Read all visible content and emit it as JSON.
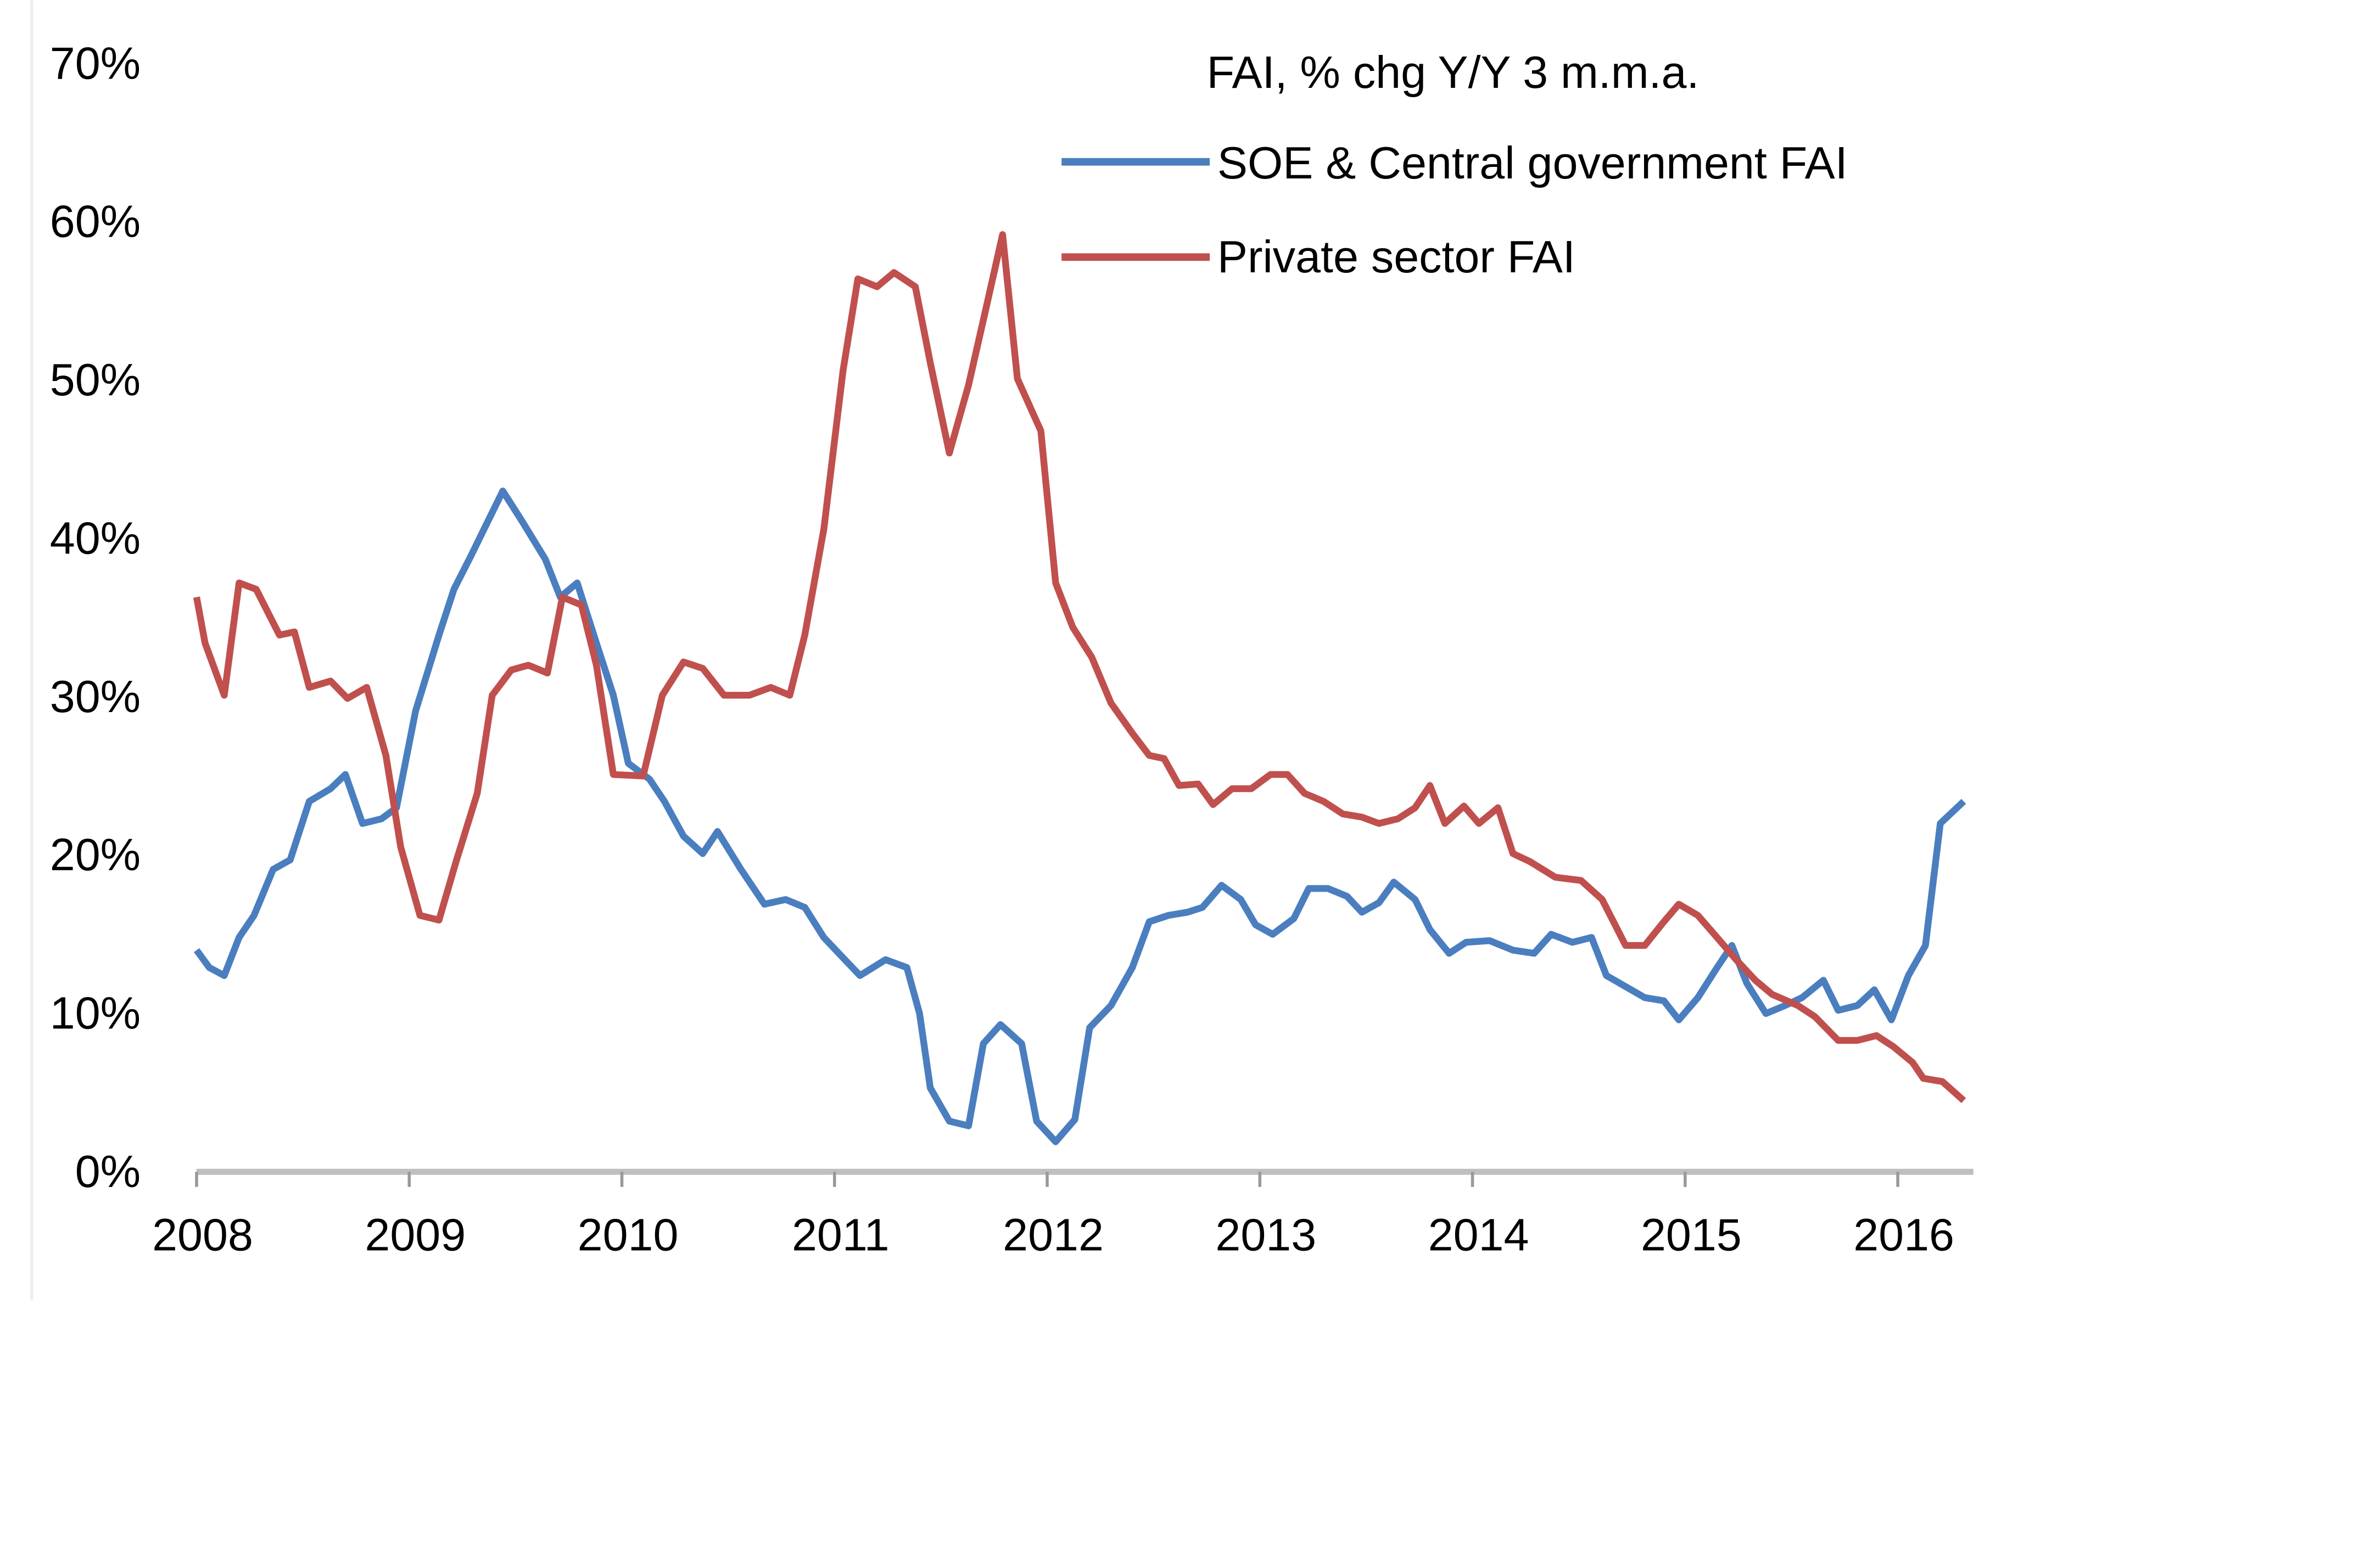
{
  "chart_data": {
    "type": "line",
    "title": "FAI, % chg Y/Y 3 m.m.a.",
    "xlabel": "",
    "ylabel": "",
    "xlim": [
      2008,
      2016.35
    ],
    "ylim": [
      0,
      70
    ],
    "x_ticks": [
      2008,
      2009,
      2010,
      2011,
      2012,
      2013,
      2014,
      2015,
      2016
    ],
    "x_tick_labels": [
      "2008",
      "2009",
      "2010",
      "2011",
      "2012",
      "2013",
      "2014",
      "2015",
      "2016"
    ],
    "y_ticks": [
      0,
      10,
      20,
      30,
      40,
      50,
      60,
      70
    ],
    "y_tick_labels": [
      "0%",
      "10%",
      "20%",
      "30%",
      "40%",
      "50%",
      "60%",
      "70%"
    ],
    "grid": false,
    "legend_position": "top-right",
    "series": [
      {
        "name": "SOE & Central government FAI",
        "color": "#4a7ebf",
        "points": [
          [
            2008.0,
            14
          ],
          [
            2008.06,
            12.9
          ],
          [
            2008.13,
            12.4
          ],
          [
            2008.2,
            14.8
          ],
          [
            2008.27,
            16.2
          ],
          [
            2008.36,
            19.1
          ],
          [
            2008.44,
            19.7
          ],
          [
            2008.53,
            23.4
          ],
          [
            2008.63,
            24.2
          ],
          [
            2008.7,
            25.1
          ],
          [
            2008.78,
            22
          ],
          [
            2008.87,
            22.3
          ],
          [
            2008.94,
            23
          ],
          [
            2009.03,
            29.1
          ],
          [
            2009.14,
            33.9
          ],
          [
            2009.21,
            36.8
          ],
          [
            2009.29,
            38.9
          ],
          [
            2009.37,
            41.1
          ],
          [
            2009.44,
            43
          ],
          [
            2009.53,
            41.1
          ],
          [
            2009.64,
            38.7
          ],
          [
            2009.71,
            36.3
          ],
          [
            2009.79,
            37.2
          ],
          [
            2009.88,
            33.4
          ],
          [
            2009.96,
            30.1
          ],
          [
            2010.03,
            25.8
          ],
          [
            2010.13,
            24.8
          ],
          [
            2010.2,
            23.4
          ],
          [
            2010.29,
            21.2
          ],
          [
            2010.38,
            20.1
          ],
          [
            2010.45,
            21.5
          ],
          [
            2010.56,
            19.1
          ],
          [
            2010.67,
            16.9
          ],
          [
            2010.77,
            17.2
          ],
          [
            2010.86,
            16.7
          ],
          [
            2010.95,
            14.8
          ],
          [
            2011.02,
            13.8
          ],
          [
            2011.12,
            12.4
          ],
          [
            2011.24,
            13.4
          ],
          [
            2011.34,
            12.9
          ],
          [
            2011.4,
            10
          ],
          [
            2011.45,
            5.3
          ],
          [
            2011.54,
            3.2
          ],
          [
            2011.63,
            2.9
          ],
          [
            2011.7,
            8.1
          ],
          [
            2011.78,
            9.3
          ],
          [
            2011.88,
            8.1
          ],
          [
            2011.95,
            3.2
          ],
          [
            2012.04,
            1.9
          ],
          [
            2012.13,
            3.3
          ],
          [
            2012.2,
            9.1
          ],
          [
            2012.3,
            10.5
          ],
          [
            2012.4,
            12.9
          ],
          [
            2012.48,
            15.8
          ],
          [
            2012.57,
            16.2
          ],
          [
            2012.66,
            16.4
          ],
          [
            2012.73,
            16.7
          ],
          [
            2012.82,
            18.1
          ],
          [
            2012.91,
            17.2
          ],
          [
            2012.98,
            15.6
          ],
          [
            2013.06,
            15
          ],
          [
            2013.16,
            16
          ],
          [
            2013.23,
            17.9
          ],
          [
            2013.32,
            17.9
          ],
          [
            2013.41,
            17.4
          ],
          [
            2013.48,
            16.4
          ],
          [
            2013.56,
            17
          ],
          [
            2013.63,
            18.3
          ],
          [
            2013.73,
            17.2
          ],
          [
            2013.8,
            15.3
          ],
          [
            2013.89,
            13.8
          ],
          [
            2013.97,
            14.5
          ],
          [
            2014.08,
            14.6
          ],
          [
            2014.19,
            14
          ],
          [
            2014.29,
            13.8
          ],
          [
            2014.37,
            15
          ],
          [
            2014.47,
            14.5
          ],
          [
            2014.56,
            14.8
          ],
          [
            2014.63,
            12.4
          ],
          [
            2014.72,
            11.7
          ],
          [
            2014.81,
            11
          ],
          [
            2014.9,
            10.8
          ],
          [
            2014.97,
            9.6
          ],
          [
            2015.06,
            11
          ],
          [
            2015.15,
            12.9
          ],
          [
            2015.22,
            14.3
          ],
          [
            2015.29,
            11.9
          ],
          [
            2015.38,
            10
          ],
          [
            2015.47,
            10.5
          ],
          [
            2015.55,
            11
          ],
          [
            2015.65,
            12.1
          ],
          [
            2015.72,
            10.2
          ],
          [
            2015.81,
            10.5
          ],
          [
            2015.89,
            11.5
          ],
          [
            2015.97,
            9.6
          ],
          [
            2016.05,
            12.4
          ],
          [
            2016.13,
            14.3
          ],
          [
            2016.2,
            22
          ],
          [
            2016.31,
            23.4
          ]
        ]
      },
      {
        "name": "Private sector FAI",
        "color": "#c0504d",
        "points": [
          [
            2008.0,
            36.3
          ],
          [
            2008.04,
            33.4
          ],
          [
            2008.13,
            30.1
          ],
          [
            2008.2,
            37.2
          ],
          [
            2008.28,
            36.8
          ],
          [
            2008.39,
            33.9
          ],
          [
            2008.46,
            34.1
          ],
          [
            2008.53,
            30.6
          ],
          [
            2008.63,
            31
          ],
          [
            2008.71,
            29.9
          ],
          [
            2008.8,
            30.6
          ],
          [
            2008.89,
            26.3
          ],
          [
            2008.96,
            20.5
          ],
          [
            2009.05,
            16.2
          ],
          [
            2009.14,
            15.9
          ],
          [
            2009.22,
            19.6
          ],
          [
            2009.32,
            23.9
          ],
          [
            2009.39,
            30.1
          ],
          [
            2009.48,
            31.7
          ],
          [
            2009.56,
            32
          ],
          [
            2009.65,
            31.5
          ],
          [
            2009.72,
            36.3
          ],
          [
            2009.81,
            35.8
          ],
          [
            2009.88,
            32
          ],
          [
            2009.96,
            25.1
          ],
          [
            2010.1,
            25
          ],
          [
            2010.19,
            30.1
          ],
          [
            2010.29,
            32.2
          ],
          [
            2010.38,
            31.8
          ],
          [
            2010.48,
            30.1
          ],
          [
            2010.6,
            30.1
          ],
          [
            2010.7,
            30.6
          ],
          [
            2010.79,
            30.1
          ],
          [
            2010.86,
            33.9
          ],
          [
            2010.95,
            40.6
          ],
          [
            2011.04,
            50.6
          ],
          [
            2011.11,
            56.4
          ],
          [
            2011.2,
            55.9
          ],
          [
            2011.28,
            56.8
          ],
          [
            2011.38,
            55.9
          ],
          [
            2011.45,
            51.1
          ],
          [
            2011.54,
            45.4
          ],
          [
            2011.63,
            49.7
          ],
          [
            2011.71,
            54.4
          ],
          [
            2011.79,
            59.2
          ],
          [
            2011.86,
            50.1
          ],
          [
            2011.97,
            46.8
          ],
          [
            2012.04,
            37.2
          ],
          [
            2012.12,
            34.4
          ],
          [
            2012.21,
            32.5
          ],
          [
            2012.3,
            29.6
          ],
          [
            2012.4,
            27.7
          ],
          [
            2012.48,
            26.3
          ],
          [
            2012.55,
            26.1
          ],
          [
            2012.62,
            24.4
          ],
          [
            2012.71,
            24.5
          ],
          [
            2012.78,
            23.2
          ],
          [
            2012.87,
            24.2
          ],
          [
            2012.96,
            24.2
          ],
          [
            2013.05,
            25.1
          ],
          [
            2013.13,
            25.1
          ],
          [
            2013.21,
            23.9
          ],
          [
            2013.3,
            23.4
          ],
          [
            2013.39,
            22.6
          ],
          [
            2013.48,
            22.4
          ],
          [
            2013.56,
            22
          ],
          [
            2013.65,
            22.3
          ],
          [
            2013.73,
            23
          ],
          [
            2013.8,
            24.4
          ],
          [
            2013.87,
            22
          ],
          [
            2013.96,
            23.1
          ],
          [
            2014.03,
            22
          ],
          [
            2014.12,
            23
          ],
          [
            2014.19,
            20.1
          ],
          [
            2014.27,
            19.6
          ],
          [
            2014.39,
            18.6
          ],
          [
            2014.51,
            18.4
          ],
          [
            2014.61,
            17.2
          ],
          [
            2014.72,
            14.3
          ],
          [
            2014.81,
            14.3
          ],
          [
            2014.9,
            15.8
          ],
          [
            2014.97,
            16.9
          ],
          [
            2015.06,
            16.2
          ],
          [
            2015.15,
            14.8
          ],
          [
            2015.24,
            13.4
          ],
          [
            2015.33,
            12.1
          ],
          [
            2015.41,
            11.2
          ],
          [
            2015.53,
            10.5
          ],
          [
            2015.61,
            9.8
          ],
          [
            2015.72,
            8.3
          ],
          [
            2015.81,
            8.3
          ],
          [
            2015.9,
            8.6
          ],
          [
            2015.98,
            7.9
          ],
          [
            2016.07,
            6.9
          ],
          [
            2016.12,
            5.9
          ],
          [
            2016.21,
            5.7
          ],
          [
            2016.31,
            4.5
          ]
        ]
      }
    ]
  }
}
